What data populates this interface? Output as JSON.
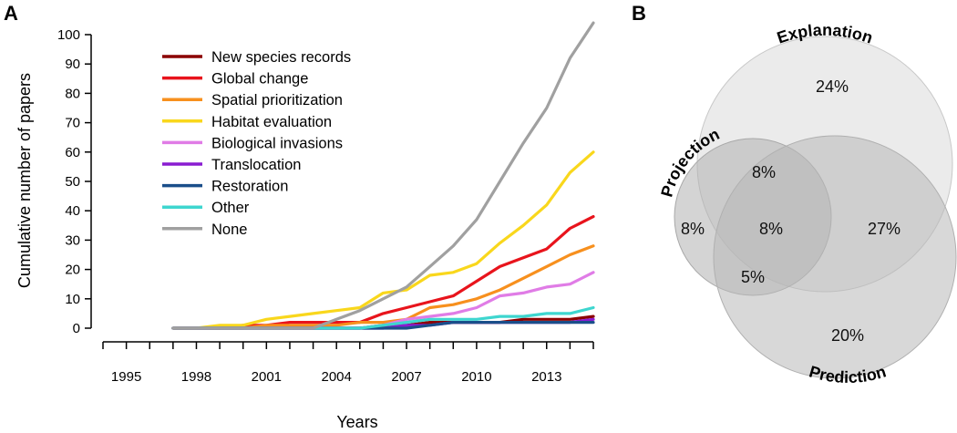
{
  "chart_data": [
    {
      "type": "line",
      "panel_label": "A",
      "xlabel": "Years",
      "ylabel": "Cumulative number of papers",
      "xlim": [
        1994,
        2015
      ],
      "ylim": [
        0,
        100
      ],
      "x_ticks": [
        1995,
        1998,
        2001,
        2004,
        2007,
        2010,
        2013
      ],
      "y_ticks": [
        0,
        10,
        20,
        30,
        40,
        50,
        60,
        70,
        80,
        90,
        100
      ],
      "grid": false,
      "legend_position": "top-left",
      "x": [
        1997,
        1998,
        1999,
        2000,
        2001,
        2002,
        2003,
        2004,
        2005,
        2006,
        2007,
        2008,
        2009,
        2010,
        2011,
        2012,
        2013,
        2014,
        2015
      ],
      "series": [
        {
          "name": "New species records",
          "color": "#8b0000",
          "values": [
            0,
            0,
            0,
            0,
            0,
            0,
            0,
            0,
            0,
            1,
            1,
            2,
            2,
            2,
            2,
            3,
            3,
            3,
            4
          ]
        },
        {
          "name": "Global change",
          "color": "#e8141c",
          "values": [
            0,
            0,
            0,
            1,
            1,
            2,
            2,
            2,
            2,
            5,
            7,
            9,
            11,
            16,
            21,
            24,
            27,
            34,
            38
          ]
        },
        {
          "name": "Spatial prioritization",
          "color": "#f7901e",
          "values": [
            0,
            0,
            0,
            0,
            1,
            1,
            1,
            1,
            2,
            2,
            3,
            7,
            8,
            10,
            13,
            17,
            21,
            25,
            28
          ]
        },
        {
          "name": "Habitat evaluation",
          "color": "#f9d71c",
          "values": [
            0,
            0,
            1,
            1,
            3,
            4,
            5,
            6,
            7,
            12,
            13,
            18,
            19,
            22,
            29,
            35,
            42,
            53,
            60
          ]
        },
        {
          "name": "Biological invasions",
          "color": "#e07ce6",
          "values": [
            0,
            0,
            0,
            0,
            0,
            0,
            0,
            0,
            0,
            1,
            3,
            4,
            5,
            7,
            11,
            12,
            14,
            15,
            19
          ]
        },
        {
          "name": "Translocation",
          "color": "#8a1cd1",
          "values": [
            0,
            0,
            0,
            0,
            0,
            0,
            0,
            0,
            0,
            0,
            1,
            1,
            2,
            2,
            2,
            2,
            2,
            2,
            3
          ]
        },
        {
          "name": "Restoration",
          "color": "#1a4e8a",
          "values": [
            0,
            0,
            0,
            0,
            0,
            0,
            0,
            0,
            0,
            0,
            0,
            1,
            2,
            2,
            2,
            2,
            2,
            2,
            2
          ]
        },
        {
          "name": "Other",
          "color": "#3ed6cf",
          "values": [
            0,
            0,
            0,
            0,
            0,
            0,
            0,
            0,
            0,
            1,
            2,
            3,
            3,
            3,
            4,
            4,
            5,
            5,
            7
          ]
        },
        {
          "name": "None",
          "color": "#a0a0a0",
          "values": [
            0,
            0,
            0,
            0,
            0,
            0,
            0,
            3,
            6,
            10,
            14,
            21,
            28,
            37,
            50,
            63,
            75,
            92,
            104
          ]
        }
      ]
    },
    {
      "type": "venn",
      "panel_label": "B",
      "sets": [
        "Explanation",
        "Projection",
        "Prediction"
      ],
      "regions": {
        "explanation_only": "24%",
        "projection_only": "8%",
        "prediction_only": "20%",
        "explanation_projection": "8%",
        "explanation_prediction": "27%",
        "projection_prediction": "5%",
        "all_three": "8%"
      },
      "colors": {
        "circle_fill": "#c0c0c0",
        "circle_stroke": "#b4b4b4"
      }
    }
  ]
}
